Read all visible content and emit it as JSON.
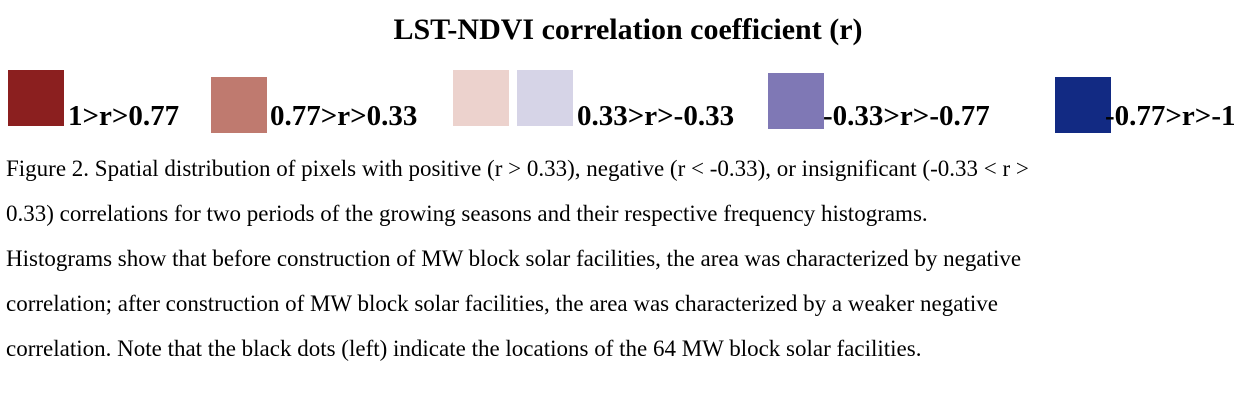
{
  "title": "LST-NDVI correlation coefficient (r)",
  "legend": {
    "items": [
      {
        "label": "1>r>0.77",
        "colors": [
          "#8b1f1f"
        ]
      },
      {
        "label": "0.77>r>0.33",
        "colors": [
          "#bf7a6f"
        ]
      },
      {
        "label": "0.33>r>-0.33",
        "colors": [
          "#ecd2cd",
          "#d6d4e7"
        ]
      },
      {
        "label": "-0.33>r>-0.77",
        "colors": [
          "#7f78b5"
        ]
      },
      {
        "label": "-0.77>r>-1",
        "colors": [
          "#122a83"
        ]
      }
    ]
  },
  "caption": {
    "lines": [
      "Figure 2. Spatial distribution of pixels with positive (r > 0.33), negative (r < -0.33), or insignificant (-0.33 < r >",
      "0.33) correlations for two periods of the growing seasons and their respective frequency histograms.",
      "Histograms show that before construction of MW block solar facilities, the area was characterized by negative",
      "correlation; after construction of MW block solar facilities, the area was characterized by a weaker negative",
      "correlation. Note that the black dots (left) indicate the locations of the 64 MW block solar facilities."
    ]
  }
}
